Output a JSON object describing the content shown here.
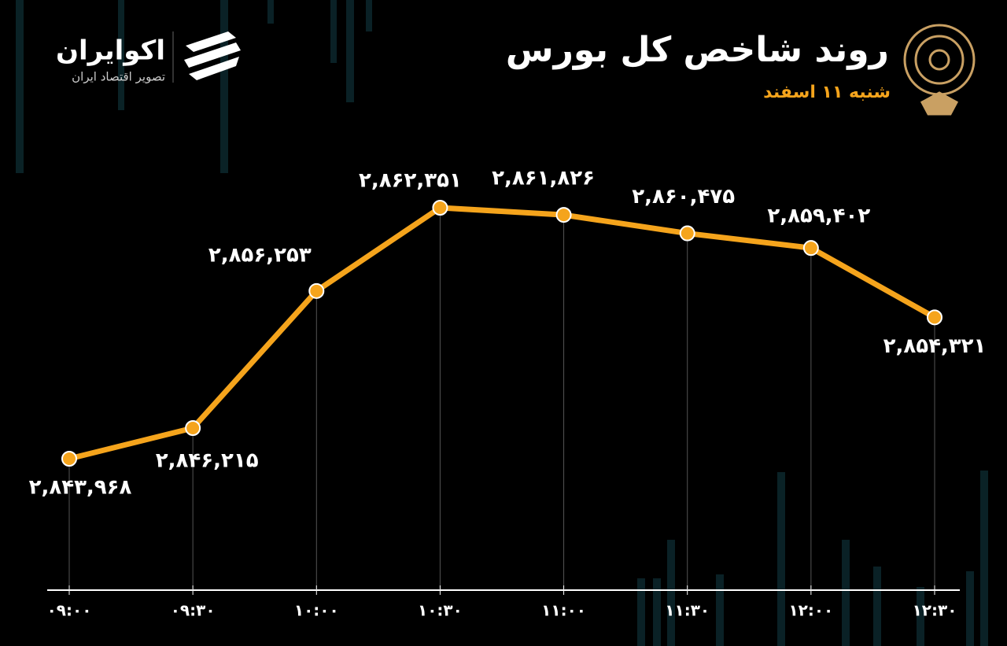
{
  "brand": {
    "name": "اکوایران",
    "tagline": "تصویر اقتصاد ایران"
  },
  "chart_data": {
    "type": "line",
    "title": "روند شاخص کل بورس",
    "subtitle": "شنبه ۱۱ اسفند",
    "categories": [
      "۰۹:۰۰",
      "۰۹:۳۰",
      "۱۰:۰۰",
      "۱۰:۳۰",
      "۱۱:۰۰",
      "۱۱:۳۰",
      "۱۲:۰۰",
      "۱۲:۳۰"
    ],
    "values": [
      2843968,
      2846215,
      2856253,
      2862351,
      2861826,
      2860475,
      2859402,
      2854321
    ],
    "value_labels": [
      "۲,۸۴۳,۹۶۸",
      "۲,۸۴۶,۲۱۵",
      "۲,۸۵۶,۲۵۳",
      "۲,۸۶۲,۳۵۱",
      "۲,۸۶۱,۸۲۶",
      "۲,۸۶۰,۴۷۵",
      "۲,۸۵۹,۴۰۲",
      "۲,۸۵۴,۳۲۱"
    ],
    "color": "#f5a41c"
  }
}
